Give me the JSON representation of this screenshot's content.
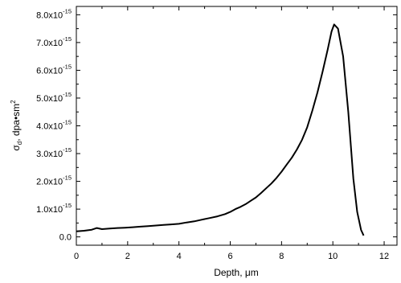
{
  "chart_data": {
    "type": "line",
    "xlabel": "Depth, μm",
    "ylabel": {
      "symbol": "σ",
      "subscript": "d",
      "rest": ", dpa•sm",
      "superscript": "2"
    },
    "xlim": [
      0,
      12.5
    ],
    "ylim": [
      -0.3,
      8.3
    ],
    "xticks": [
      {
        "value": 0,
        "label": "0"
      },
      {
        "value": 2,
        "label": "2"
      },
      {
        "value": 4,
        "label": "4"
      },
      {
        "value": 6,
        "label": "6"
      },
      {
        "value": 8,
        "label": "8"
      },
      {
        "value": 10,
        "label": "10"
      },
      {
        "value": 12,
        "label": "12"
      }
    ],
    "yticks": [
      {
        "value": 0,
        "mantissa": "0.0",
        "exp": ""
      },
      {
        "value": 1,
        "mantissa": "1.0x10",
        "exp": "-15"
      },
      {
        "value": 2,
        "mantissa": "2.0x10",
        "exp": "-15"
      },
      {
        "value": 3,
        "mantissa": "3.0x10",
        "exp": "-15"
      },
      {
        "value": 4,
        "mantissa": "4.0x10",
        "exp": "-15"
      },
      {
        "value": 5,
        "mantissa": "5.0x10",
        "exp": "-15"
      },
      {
        "value": 6,
        "mantissa": "6.0x10",
        "exp": "-15"
      },
      {
        "value": 7,
        "mantissa": "7.0x10",
        "exp": "-15"
      },
      {
        "value": 8,
        "mantissa": "8.0x10",
        "exp": "-15"
      }
    ],
    "y_scale_factor": "1e-15",
    "grid": false,
    "series": [
      {
        "color": "#000000",
        "x": [
          0.0,
          0.3,
          0.6,
          0.8,
          1.0,
          1.3,
          1.6,
          1.9,
          2.2,
          2.5,
          2.8,
          3.1,
          3.4,
          3.7,
          4.0,
          4.3,
          4.6,
          4.9,
          5.2,
          5.5,
          5.8,
          6.0,
          6.2,
          6.4,
          6.6,
          6.8,
          7.0,
          7.2,
          7.4,
          7.6,
          7.8,
          8.0,
          8.2,
          8.4,
          8.6,
          8.8,
          9.0,
          9.2,
          9.4,
          9.6,
          9.8,
          9.95,
          10.05,
          10.2,
          10.4,
          10.6,
          10.8,
          10.95,
          11.1,
          11.2
        ],
        "y": [
          0.2,
          0.22,
          0.26,
          0.32,
          0.28,
          0.3,
          0.32,
          0.33,
          0.35,
          0.37,
          0.39,
          0.41,
          0.43,
          0.45,
          0.47,
          0.52,
          0.56,
          0.62,
          0.68,
          0.74,
          0.82,
          0.9,
          1.0,
          1.08,
          1.18,
          1.3,
          1.42,
          1.58,
          1.75,
          1.92,
          2.12,
          2.35,
          2.6,
          2.85,
          3.15,
          3.5,
          3.95,
          4.55,
          5.2,
          5.95,
          6.75,
          7.4,
          7.65,
          7.5,
          6.5,
          4.5,
          2.1,
          0.9,
          0.25,
          0.05
        ]
      }
    ]
  }
}
